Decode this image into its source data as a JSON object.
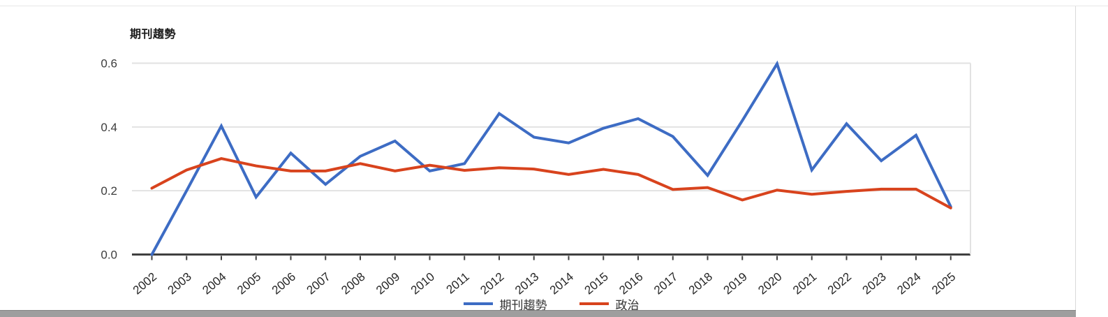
{
  "chart_data": {
    "type": "line",
    "title": "期刊趨勢",
    "categories": [
      "2002",
      "2003",
      "2004",
      "2005",
      "2006",
      "2007",
      "2008",
      "2009",
      "2010",
      "2011",
      "2012",
      "2013",
      "2014",
      "2015",
      "2016",
      "2017",
      "2018",
      "2019",
      "2020",
      "2021",
      "2022",
      "2023",
      "2024",
      "2025"
    ],
    "series": [
      {
        "name": "期刊趨勢",
        "color": "#3d6cc4",
        "values": [
          0.0,
          0.2,
          0.403,
          0.18,
          0.318,
          0.22,
          0.308,
          0.356,
          0.262,
          0.285,
          0.442,
          0.368,
          0.35,
          0.396,
          0.426,
          0.37,
          0.248,
          0.42,
          0.598,
          0.265,
          0.41,
          0.294,
          0.374,
          0.15
        ]
      },
      {
        "name": "政治",
        "color": "#d8431d",
        "values": [
          0.208,
          0.265,
          0.301,
          0.278,
          0.262,
          0.262,
          0.285,
          0.262,
          0.28,
          0.264,
          0.272,
          0.268,
          0.251,
          0.267,
          0.251,
          0.204,
          0.21,
          0.171,
          0.202,
          0.189,
          0.198,
          0.205,
          0.205,
          0.146
        ]
      }
    ],
    "xlabel": "",
    "ylabel": "",
    "ylim": [
      0,
      0.6
    ],
    "y_ticks": [
      0.0,
      0.2,
      0.4,
      0.6
    ],
    "y_tick_labels": [
      "0.0",
      "0.2",
      "0.4",
      "0.6"
    ],
    "grid": true,
    "legend_position": "bottom-center",
    "x_label_rotation_deg": -40
  },
  "colors": {
    "grid_line": "#e2e2e2",
    "axis_line": "#3f3f3f",
    "y_tick_label": "#3d3d3d",
    "x_tick_label": "#262626",
    "plot_right_edge": "#e2e2e2",
    "scrollbar": "#9e9e9e",
    "divider": "#e6e6e6"
  }
}
